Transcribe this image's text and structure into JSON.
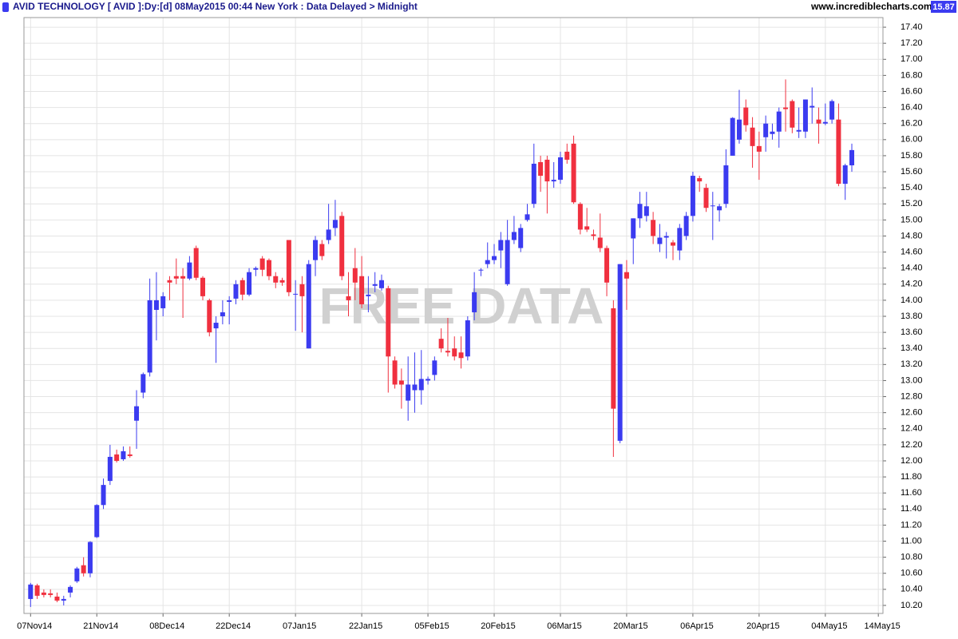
{
  "chart_data": {
    "type": "candlestick",
    "title": "AVID TECHNOLOGY [ AVID ]:Dy:[d]  08May2015 00:44 New York : Data Delayed > Midnight",
    "source": "www.incrediblecharts.com",
    "watermark": "FREE DATA",
    "last_price": 15.87,
    "up_color": "#3b3bf0",
    "down_color": "#f0303f",
    "grid": true,
    "xlim": [
      -1,
      128.7
    ],
    "xticks": [
      {
        "value": 0,
        "label": "07Nov14"
      },
      {
        "value": 10,
        "label": "21Nov14"
      },
      {
        "value": 20,
        "label": "08Dec14"
      },
      {
        "value": 30,
        "label": "22Dec14"
      },
      {
        "value": 40,
        "label": "07Jan15"
      },
      {
        "value": 50,
        "label": "22Jan15"
      },
      {
        "value": 60,
        "label": "05Feb15"
      },
      {
        "value": 70,
        "label": "20Feb15"
      },
      {
        "value": 80,
        "label": "06Mar15"
      },
      {
        "value": 90,
        "label": "20Mar15"
      },
      {
        "value": 100,
        "label": "06Apr15"
      },
      {
        "value": 110,
        "label": "20Apr15"
      },
      {
        "value": 120,
        "label": "04May15"
      },
      {
        "value": 128,
        "label": "14May15"
      }
    ],
    "ylim": [
      10.1,
      17.52
    ],
    "yticks": [
      {
        "value": 10.2,
        "label": "10.20"
      },
      {
        "value": 10.4,
        "label": "10.40"
      },
      {
        "value": 10.6,
        "label": "10.60"
      },
      {
        "value": 10.8,
        "label": "10.80"
      },
      {
        "value": 11,
        "label": "11.00"
      },
      {
        "value": 11.2,
        "label": "11.20"
      },
      {
        "value": 11.4,
        "label": "11.40"
      },
      {
        "value": 11.6,
        "label": "11.60"
      },
      {
        "value": 11.8,
        "label": "11.80"
      },
      {
        "value": 12,
        "label": "12.00"
      },
      {
        "value": 12.2,
        "label": "12.20"
      },
      {
        "value": 12.4,
        "label": "12.40"
      },
      {
        "value": 12.6,
        "label": "12.60"
      },
      {
        "value": 12.8,
        "label": "12.80"
      },
      {
        "value": 13,
        "label": "13.00"
      },
      {
        "value": 13.2,
        "label": "13.20"
      },
      {
        "value": 13.4,
        "label": "13.40"
      },
      {
        "value": 13.6,
        "label": "13.60"
      },
      {
        "value": 13.8,
        "label": "13.80"
      },
      {
        "value": 14,
        "label": "14.00"
      },
      {
        "value": 14.2,
        "label": "14.20"
      },
      {
        "value": 14.4,
        "label": "14.40"
      },
      {
        "value": 14.6,
        "label": "14.60"
      },
      {
        "value": 14.8,
        "label": "14.80"
      },
      {
        "value": 15,
        "label": "15.00"
      },
      {
        "value": 15.2,
        "label": "15.20"
      },
      {
        "value": 15.4,
        "label": "15.40"
      },
      {
        "value": 15.6,
        "label": "15.60"
      },
      {
        "value": 15.8,
        "label": "15.80"
      },
      {
        "value": 16,
        "label": "16.00"
      },
      {
        "value": 16.2,
        "label": "16.20"
      },
      {
        "value": 16.4,
        "label": "16.40"
      },
      {
        "value": 16.6,
        "label": "16.60"
      },
      {
        "value": 16.8,
        "label": "16.80"
      },
      {
        "value": 17,
        "label": "17.00"
      },
      {
        "value": 17.2,
        "label": "17.20"
      },
      {
        "value": 17.4,
        "label": "17.40"
      }
    ],
    "open": [
      10.28,
      10.45,
      10.36,
      10.35,
      10.31,
      10.26,
      10.36,
      10.5,
      10.7,
      10.6,
      11.05,
      11.45,
      11.75,
      12.08,
      12.02,
      12.08,
      12.5,
      12.85,
      13.1,
      13.88,
      13.9,
      14.25,
      14.3,
      14.3,
      14.27,
      14.65,
      14.28,
      14.0,
      13.65,
      13.8,
      13.98,
      14.02,
      14.25,
      14.07,
      14.38,
      14.52,
      14.5,
      14.3,
      14.25,
      14.75,
      14.07,
      14.2,
      13.4,
      14.5,
      14.7,
      14.75,
      14.9,
      15.05,
      14.05,
      14.4,
      14.3,
      14.05,
      14.18,
      14.15,
      14.15,
      13.25,
      13.0,
      12.75,
      12.88,
      12.88,
      13.0,
      13.07,
      13.52,
      13.37,
      13.4,
      13.35,
      13.3,
      13.85,
      14.37,
      14.45,
      14.5,
      14.62,
      14.2,
      14.75,
      14.65,
      15.0,
      15.2,
      15.72,
      15.75,
      15.48,
      15.5,
      15.85,
      15.95,
      15.2,
      14.92,
      14.82,
      14.78,
      14.65,
      13.9,
      12.25,
      14.35,
      14.77,
      15.02,
      15.05,
      15.0,
      14.7,
      14.78,
      14.72,
      14.62,
      14.8,
      15.05,
      15.52,
      15.4,
      15.17,
      15.12,
      15.2,
      15.8,
      16.0,
      16.4,
      16.15,
      15.92,
      16.03,
      16.07,
      16.1,
      16.4,
      16.48,
      16.1,
      16.1,
      16.4,
      16.25,
      16.2,
      16.25,
      16.25,
      15.45,
      15.68
    ],
    "high": [
      10.48,
      10.47,
      10.4,
      10.4,
      10.36,
      10.32,
      10.45,
      10.68,
      10.8,
      11.0,
      11.46,
      11.78,
      12.2,
      12.14,
      12.18,
      12.18,
      12.88,
      13.1,
      14.27,
      14.35,
      14.1,
      14.3,
      14.52,
      14.4,
      14.55,
      14.68,
      14.3,
      14.02,
      13.8,
      14.0,
      14.05,
      14.25,
      14.28,
      14.4,
      14.42,
      14.55,
      14.52,
      14.35,
      14.28,
      14.75,
      14.25,
      14.3,
      14.5,
      14.8,
      14.75,
      15.2,
      15.25,
      15.1,
      14.35,
      14.65,
      14.55,
      14.3,
      14.35,
      14.32,
      14.18,
      13.3,
      13.15,
      13.3,
      13.35,
      13.38,
      13.05,
      13.3,
      13.65,
      13.78,
      13.55,
      13.55,
      13.8,
      14.35,
      14.4,
      14.72,
      14.7,
      14.85,
      15.0,
      15.05,
      14.95,
      15.2,
      15.95,
      15.8,
      15.8,
      15.72,
      15.85,
      15.95,
      16.05,
      15.22,
      15.15,
      14.88,
      15.08,
      14.68,
      14.0,
      14.45,
      14.5,
      15.02,
      15.35,
      15.35,
      15.1,
      14.95,
      14.85,
      14.75,
      14.95,
      15.1,
      15.6,
      15.55,
      15.45,
      15.35,
      15.2,
      15.88,
      16.28,
      16.62,
      16.5,
      16.28,
      16.1,
      16.3,
      16.2,
      16.4,
      16.75,
      16.5,
      16.4,
      16.5,
      16.65,
      16.4,
      16.45,
      16.5,
      16.45,
      15.7,
      15.95
    ],
    "low": [
      10.18,
      10.28,
      10.3,
      10.3,
      10.24,
      10.2,
      10.3,
      10.48,
      10.56,
      10.55,
      11.04,
      11.4,
      11.7,
      11.98,
      12.0,
      12.04,
      12.15,
      12.78,
      13.05,
      13.5,
      13.8,
      14.0,
      14.2,
      13.78,
      14.25,
      14.25,
      14.0,
      13.55,
      13.22,
      13.7,
      13.7,
      13.95,
      14.0,
      14.05,
      14.3,
      14.3,
      14.25,
      14.15,
      14.18,
      14.05,
      13.62,
      13.6,
      13.4,
      14.3,
      14.5,
      14.7,
      14.8,
      14.25,
      13.8,
      14.0,
      13.9,
      13.85,
      14.1,
      14.12,
      12.85,
      12.9,
      12.65,
      12.5,
      12.6,
      12.7,
      12.95,
      13.0,
      13.35,
      13.3,
      13.25,
      13.15,
      13.25,
      13.75,
      14.3,
      14.4,
      14.45,
      14.4,
      14.18,
      14.7,
      14.6,
      14.98,
      15.15,
      15.35,
      15.08,
      15.4,
      15.45,
      15.7,
      15.2,
      14.82,
      14.85,
      14.75,
      14.6,
      14.05,
      12.05,
      12.22,
      13.88,
      14.45,
      14.9,
      14.98,
      14.7,
      14.6,
      14.52,
      14.5,
      14.5,
      14.75,
      14.98,
      15.35,
      15.1,
      14.75,
      14.98,
      15.15,
      15.8,
      15.95,
      16.1,
      15.65,
      15.5,
      15.85,
      16.0,
      15.9,
      16.1,
      16.08,
      16.02,
      16.02,
      16.2,
      15.95,
      16.18,
      16.2,
      15.42,
      15.25,
      15.6
    ],
    "close": [
      10.46,
      10.32,
      10.33,
      10.33,
      10.26,
      10.28,
      10.43,
      10.66,
      10.6,
      10.99,
      11.45,
      11.7,
      12.05,
      12.0,
      12.12,
      12.06,
      12.68,
      13.08,
      14.0,
      14.0,
      14.05,
      14.22,
      14.27,
      14.27,
      14.47,
      14.28,
      14.05,
      13.6,
      13.72,
      13.85,
      14.0,
      14.2,
      14.07,
      14.35,
      14.4,
      14.38,
      14.3,
      14.22,
      14.22,
      14.1,
      14.08,
      14.05,
      14.45,
      14.75,
      14.55,
      14.88,
      15.0,
      14.3,
      14.0,
      14.22,
      13.95,
      14.07,
      14.2,
      14.25,
      13.3,
      12.95,
      12.95,
      12.95,
      12.95,
      13.02,
      13.02,
      13.25,
      13.4,
      13.35,
      13.3,
      13.28,
      13.75,
      14.1,
      14.38,
      14.5,
      14.55,
      14.75,
      14.75,
      14.85,
      14.9,
      15.07,
      15.7,
      15.55,
      15.48,
      15.5,
      15.78,
      15.75,
      15.22,
      14.88,
      14.88,
      14.8,
      14.65,
      14.22,
      12.65,
      14.45,
      14.27,
      15.02,
      15.2,
      15.17,
      14.8,
      14.78,
      14.8,
      14.68,
      14.9,
      15.05,
      15.55,
      15.48,
      15.15,
      15.18,
      15.17,
      15.68,
      16.27,
      16.25,
      16.18,
      15.92,
      15.85,
      16.2,
      16.1,
      16.35,
      16.38,
      16.15,
      16.12,
      16.5,
      16.42,
      16.2,
      16.22,
      16.48,
      15.45,
      15.68,
      15.87
    ]
  }
}
